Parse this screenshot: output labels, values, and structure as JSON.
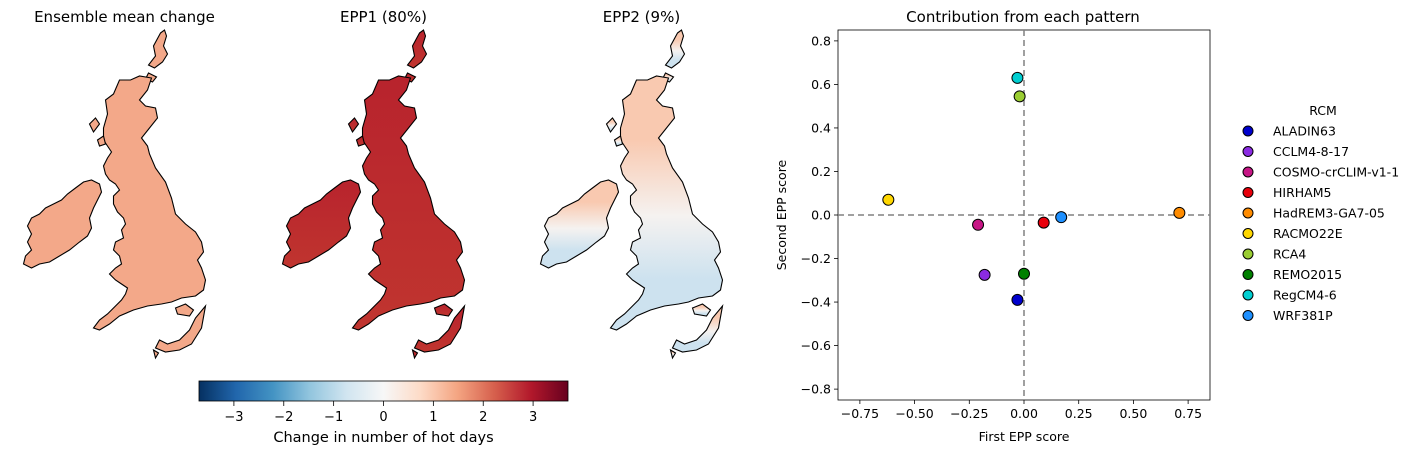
{
  "maps": [
    {
      "title": "Ensemble mean change",
      "fill": "uniform-positive"
    },
    {
      "title": "EPP1 (80%)",
      "fill": "strong-positive"
    },
    {
      "title": "EPP2 (9%)",
      "fill": "north-south-dipole"
    }
  ],
  "colorbar": {
    "label": "Change in number of hot days",
    "range": [
      -3.7,
      3.7
    ],
    "ticks": [
      -3,
      -2,
      -1,
      0,
      1,
      2,
      3
    ],
    "tick_labels": [
      "−3",
      "−2",
      "−1",
      "0",
      "1",
      "2",
      "3"
    ],
    "colormap": "RdBu_r"
  },
  "chart_data": {
    "type": "scatter",
    "title": "Contribution from each pattern",
    "xlabel": "First EPP score",
    "ylabel": "Second EPP score",
    "xlim": [
      -0.85,
      0.85
    ],
    "ylim": [
      -0.85,
      0.85
    ],
    "xticks": [
      -0.75,
      -0.5,
      -0.25,
      0.0,
      0.25,
      0.5,
      0.75
    ],
    "xtick_labels": [
      "−0.75",
      "−0.50",
      "−0.25",
      "0.00",
      "0.25",
      "0.50",
      "0.75"
    ],
    "yticks": [
      -0.8,
      -0.6,
      -0.4,
      -0.2,
      0.0,
      0.2,
      0.4,
      0.6,
      0.8
    ],
    "ytick_labels": [
      "−0.8",
      "−0.6",
      "−0.4",
      "−0.2",
      "0.0",
      "0.2",
      "0.4",
      "0.6",
      "0.8"
    ],
    "reference_lines": {
      "x": 0,
      "y": 0,
      "style": "dashed",
      "color": "#808080"
    },
    "legend": {
      "title": "RCM",
      "placement": "right-outside"
    },
    "series": [
      {
        "name": "ALADIN63",
        "color": "#0000cd",
        "x": -0.03,
        "y": -0.39
      },
      {
        "name": "CCLM4-8-17",
        "color": "#8a2be2",
        "x": -0.18,
        "y": -0.275
      },
      {
        "name": "COSMO-crCLIM-v1-1",
        "color": "#c71585",
        "x": -0.21,
        "y": -0.045
      },
      {
        "name": "HIRHAM5",
        "color": "#e8000b",
        "x": 0.09,
        "y": -0.035
      },
      {
        "name": "HadREM3-GA7-05",
        "color": "#ff8c00",
        "x": 0.71,
        "y": 0.01
      },
      {
        "name": "RACMO22E",
        "color": "#ffd700",
        "x": -0.62,
        "y": 0.07
      },
      {
        "name": "RCA4",
        "color": "#9acd32",
        "x": -0.02,
        "y": 0.545
      },
      {
        "name": "REMO2015",
        "color": "#008000",
        "x": 0.0,
        "y": -0.27
      },
      {
        "name": "RegCM4-6",
        "color": "#00ced1",
        "x": -0.03,
        "y": 0.63
      },
      {
        "name": "WRF381P",
        "color": "#1e90ff",
        "x": 0.17,
        "y": -0.01
      }
    ]
  }
}
